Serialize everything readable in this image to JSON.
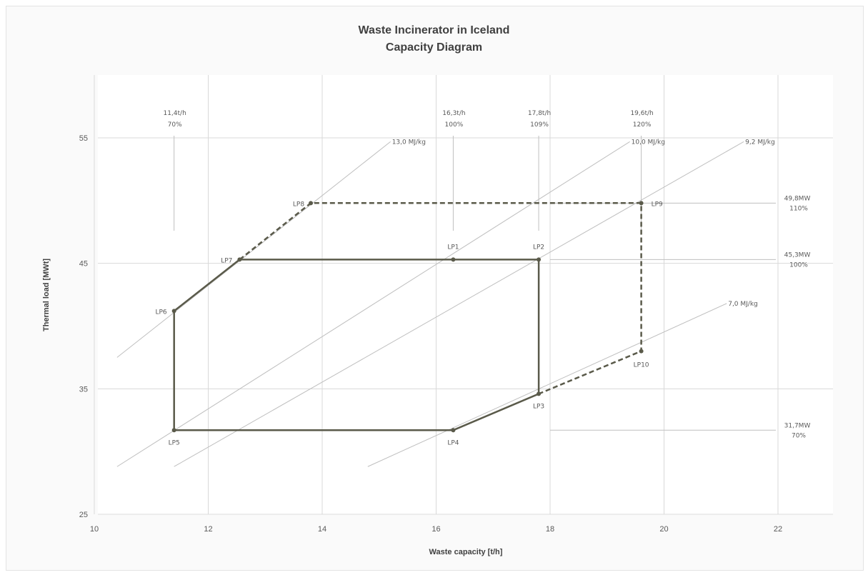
{
  "chart_data": {
    "type": "scatter",
    "title": "Waste Incinerator in Iceland",
    "subtitle": "Capacity Diagram",
    "xlabel": "Waste capacity [t/h]",
    "ylabel": "Thermal load [MWt]",
    "xlim": [
      10,
      22
    ],
    "ylim": [
      25,
      60
    ],
    "xticks": [
      10,
      12,
      14,
      16,
      18,
      20,
      22
    ],
    "yticks": [
      25,
      35,
      45,
      55
    ],
    "grid": true,
    "colors": {
      "series": "#5a5a4a",
      "grid": "#d9d9d9",
      "guide": "#bfbfbf"
    },
    "points": [
      {
        "name": "LP1",
        "x": 16.3,
        "y": 45.3
      },
      {
        "name": "LP2",
        "x": 17.8,
        "y": 45.3
      },
      {
        "name": "LP3",
        "x": 17.8,
        "y": 34.6
      },
      {
        "name": "LP4",
        "x": 16.3,
        "y": 31.7
      },
      {
        "name": "LP5",
        "x": 11.4,
        "y": 31.7
      },
      {
        "name": "LP6",
        "x": 11.4,
        "y": 41.2
      },
      {
        "name": "LP7",
        "x": 12.55,
        "y": 45.3
      },
      {
        "name": "LP8",
        "x": 13.8,
        "y": 49.8
      },
      {
        "name": "LP9",
        "x": 19.6,
        "y": 49.8
      },
      {
        "name": "LP10",
        "x": 19.6,
        "y": 38.0
      }
    ],
    "solid_path": [
      "LP7",
      "LP1",
      "LP2",
      "LP3",
      "LP4",
      "LP5",
      "LP6",
      "LP7"
    ],
    "dashed_path": [
      "LP7",
      "LP8",
      "LP9",
      "LP10",
      "LP3"
    ],
    "heating_value_lines": [
      {
        "label": "13,0 MJ/kg",
        "x1": 10.4,
        "y1": 37.5,
        "x2": 15.2,
        "y2": 54.7
      },
      {
        "label": "10,0 MJ/kg",
        "x1": 10.4,
        "y1": 28.8,
        "x2": 19.4,
        "y2": 54.7
      },
      {
        "label": "9,2 MJ/kg",
        "x1": 11.4,
        "y1": 28.8,
        "x2": 21.4,
        "y2": 54.7
      },
      {
        "label": "7,0 MJ/kg",
        "x1": 14.8,
        "y1": 28.8,
        "x2": 21.1,
        "y2": 41.8
      }
    ],
    "capacity_markers": [
      {
        "label1": "11,4t/h",
        "label2": "70%",
        "x": 11.4
      },
      {
        "label1": "16,3t/h",
        "label2": "100%",
        "x": 16.3
      },
      {
        "label1": "17,8t/h",
        "label2": "109%",
        "x": 17.8
      },
      {
        "label1": "19,6t/h",
        "label2": "120%",
        "x": 19.6
      }
    ],
    "load_markers": [
      {
        "label1": "49,8MW",
        "label2": "110%",
        "y": 49.8
      },
      {
        "label1": "45,3MW",
        "label2": "100%",
        "y": 45.3
      },
      {
        "label1": "31,7MW",
        "label2": "70%",
        "y": 31.7
      }
    ]
  }
}
